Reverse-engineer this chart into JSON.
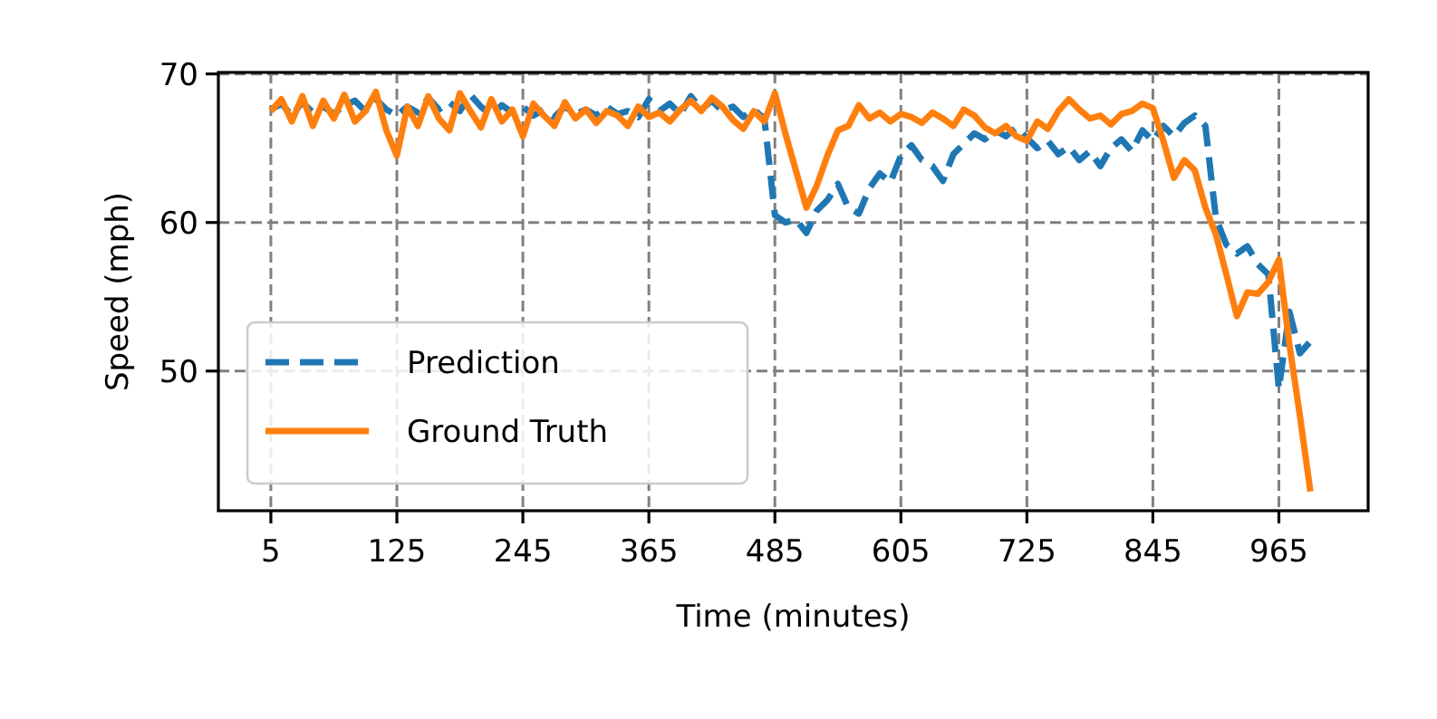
{
  "chart_data": {
    "type": "line",
    "xlabel": "Time (minutes)",
    "ylabel": "Speed (mph)",
    "x": [
      5,
      15,
      25,
      35,
      45,
      55,
      65,
      75,
      85,
      95,
      105,
      115,
      125,
      135,
      145,
      155,
      165,
      175,
      185,
      195,
      205,
      215,
      225,
      235,
      245,
      255,
      265,
      275,
      285,
      295,
      305,
      315,
      325,
      335,
      345,
      355,
      365,
      375,
      385,
      395,
      405,
      415,
      425,
      435,
      445,
      455,
      465,
      475,
      485,
      495,
      505,
      515,
      525,
      535,
      545,
      555,
      565,
      575,
      585,
      595,
      605,
      615,
      625,
      635,
      645,
      655,
      665,
      675,
      685,
      695,
      705,
      715,
      725,
      735,
      745,
      755,
      765,
      775,
      785,
      795,
      805,
      815,
      825,
      835,
      845,
      855,
      865,
      875,
      885,
      895,
      905,
      915,
      925,
      935,
      945,
      955,
      965,
      975,
      985,
      995
    ],
    "xlim": [
      -45,
      1050
    ],
    "xticks": [
      5,
      125,
      245,
      365,
      485,
      605,
      725,
      845,
      965
    ],
    "ylim": [
      40.6,
      70.1
    ],
    "yticks": [
      50,
      60,
      70
    ],
    "grid": true,
    "legend": "bottom left",
    "series": [
      {
        "name": "Prediction",
        "color": "#1f77b4",
        "line_style": "dashed",
        "values": [
          67.6,
          68,
          67.2,
          68.1,
          67.4,
          67.8,
          67.3,
          67.9,
          68.2,
          67.5,
          68.3,
          67.6,
          67.2,
          67.8,
          67.4,
          68.4,
          67.6,
          68.1,
          67.5,
          68.6,
          67.8,
          67.2,
          67.9,
          67.4,
          67.8,
          67.2,
          67.6,
          67.1,
          67.8,
          67.3,
          67.6,
          67.2,
          67.8,
          67.3,
          67.5,
          67.1,
          68.3,
          67.5,
          68,
          67.3,
          68.5,
          67.6,
          68.2,
          67.5,
          67.8,
          67.1,
          67.6,
          67,
          60.5,
          60,
          60.2,
          59.3,
          60.8,
          61.5,
          62.6,
          61,
          60.6,
          62.3,
          63.3,
          62.7,
          64.5,
          65.2,
          64.2,
          63.8,
          62.8,
          64.6,
          65.3,
          66,
          65.6,
          66.2,
          65.8,
          66.4,
          65.7,
          65,
          65.5,
          64.6,
          65.1,
          64.2,
          64.8,
          63.8,
          65,
          65.6,
          64.8,
          66.2,
          65.5,
          66.5,
          65.8,
          66.7,
          67.2,
          66.5,
          60.3,
          58.5,
          57.9,
          58.4,
          57.2,
          56.5,
          48.8,
          54,
          51.2,
          52
        ]
      },
      {
        "name": "Ground Truth",
        "color": "#ff7f0e",
        "line_style": "solid",
        "values": [
          67.5,
          68.3,
          66.8,
          68.5,
          66.5,
          68.2,
          67,
          68.6,
          66.8,
          67.5,
          68.8,
          66.2,
          64.5,
          67.8,
          66.5,
          68.5,
          67,
          66.2,
          68.7,
          67.5,
          66.4,
          68.3,
          66.8,
          67.6,
          65.8,
          68,
          67.2,
          66.5,
          68.1,
          67,
          67.6,
          66.7,
          67.5,
          67.2,
          66.5,
          67.8,
          67.1,
          67.4,
          66.8,
          67.6,
          68.2,
          67.5,
          68.4,
          67.8,
          66.9,
          66.3,
          67.5,
          66.8,
          68.7,
          66,
          63.5,
          61,
          62.5,
          64.5,
          66.2,
          66.5,
          67.9,
          67,
          67.4,
          66.8,
          67.3,
          67.1,
          66.7,
          67.4,
          67,
          66.5,
          67.6,
          67.2,
          66.4,
          66,
          66.5,
          65.8,
          65.5,
          66.8,
          66.3,
          67.5,
          68.3,
          67.6,
          67,
          67.2,
          66.6,
          67.3,
          67.5,
          68,
          67.7,
          65.5,
          63,
          64.2,
          63.5,
          61,
          59.2,
          56.5,
          53.7,
          55.3,
          55.2,
          56,
          57.5,
          51.8,
          47,
          41.9
        ]
      }
    ]
  }
}
